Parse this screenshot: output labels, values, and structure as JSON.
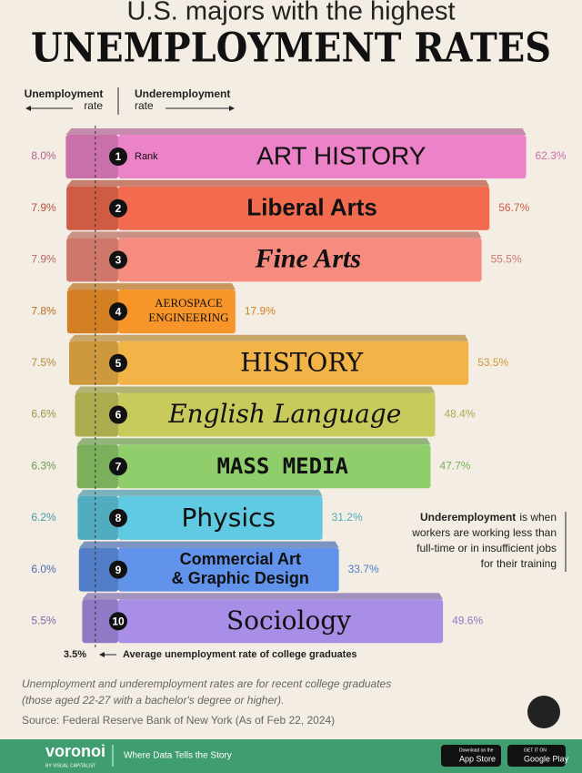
{
  "chart_data": {
    "type": "book-bar",
    "title": "U.S. majors with the highest",
    "title_emphasis": "UNEMPLOYMENT RATES",
    "left_axis_label": [
      "Unemployment",
      "rate"
    ],
    "right_axis_label": [
      "Underemployment",
      "rate"
    ],
    "rank_label": "Rank",
    "ranks": [
      1,
      2,
      3,
      4,
      5,
      6,
      7,
      8,
      9,
      10
    ],
    "categories": [
      "ART HISTORY",
      "Liberal Arts",
      "Fine Arts",
      [
        "AEROSPACE",
        "ENGINEERING"
      ],
      "HISTORY",
      "English Language",
      "MASS MEDIA",
      "Physics",
      [
        "Commercial Art",
        "& Graphic Design"
      ],
      "Sociology"
    ],
    "colors": [
      "#ec82c8",
      "#f26b4f",
      "#f58c7f",
      "#f8952a",
      "#f2b446",
      "#c8ca5c",
      "#8fce6b",
      "#5fcae2",
      "#6193ea",
      "#a98ee8"
    ],
    "unemployment": {
      "values": [
        8.0,
        7.9,
        7.9,
        7.8,
        7.5,
        6.6,
        6.3,
        6.2,
        6.0,
        5.5
      ],
      "value_labels": [
        "8.0%",
        "7.9%",
        "7.9%",
        "7.8%",
        "7.5%",
        "6.6%",
        "6.3%",
        "6.2%",
        "6.0%",
        "5.5%"
      ]
    },
    "underemployment": {
      "values": [
        62.3,
        56.7,
        55.5,
        17.9,
        53.5,
        48.4,
        47.7,
        31.2,
        33.7,
        49.6
      ],
      "value_labels": [
        "62.3%",
        "56.7%",
        "55.5%",
        "17.9%",
        "53.5%",
        "48.4%",
        "47.7%",
        "31.2%",
        "33.7%",
        "49.6%"
      ]
    },
    "average": {
      "value": 3.5,
      "label": "3.5%",
      "text": "Average unemployment rate of college graduates"
    },
    "note": {
      "term": "Underemployment",
      "lines": [
        "is when",
        "workers are working less than",
        "full-time or in insufficient jobs",
        "for their training"
      ]
    },
    "footnote": [
      "Unemployment and underemployment rates are for recent college graduates",
      "(those aged 22-27 with a bachelor's degree or higher)."
    ],
    "source": "Source: Federal Reserve Bank of New York (As of Feb 22, 2024)"
  },
  "footer": {
    "brand": "voronoi",
    "byline": "BY VISUAL CAPITALIST",
    "tagline": "Where Data Tells the Story",
    "app_store": [
      "Download on the",
      "App Store"
    ],
    "google_play": [
      "GET IT ON",
      "Google Play"
    ]
  }
}
